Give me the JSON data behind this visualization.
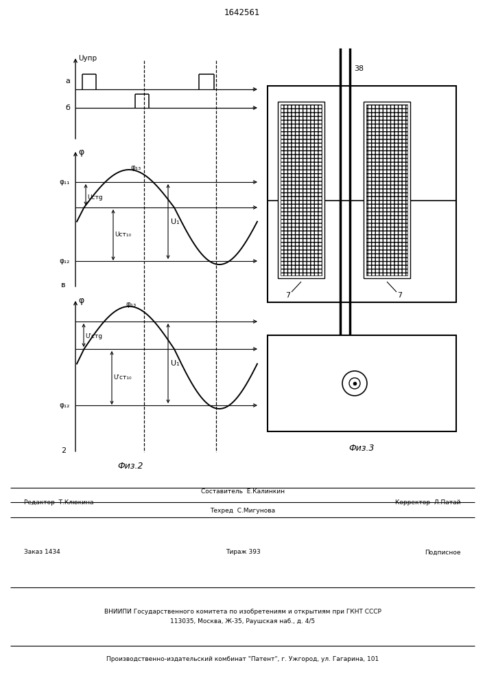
{
  "title": "1642561",
  "background": "#ffffff",
  "line_color": "#000000",
  "fig2_label": "Физ.2",
  "fig3_label": "Физ.3",
  "footer": {
    "line1_left": "Редактор  Т.Клюкина",
    "line1_center_top": "Составитель  Е.Калинкин",
    "line1_center_bot": "Техред  С.Мигунова",
    "line1_right": "Корректор  Л.Патай",
    "line2_left": "Заказ 1434",
    "line2_center": "Тираж 393",
    "line2_right": "Подписное",
    "line3": "ВНИИПИ Государственного комитета по изобретениям и открытиям при ГКНТ СССР",
    "line4": "113035, Москва, Ж-35, Раушская наб., д. 4/5",
    "line5": "Производственно-издательский комбинат \"Патент\", г. Ужгород, ул. Гагарина, 101"
  }
}
